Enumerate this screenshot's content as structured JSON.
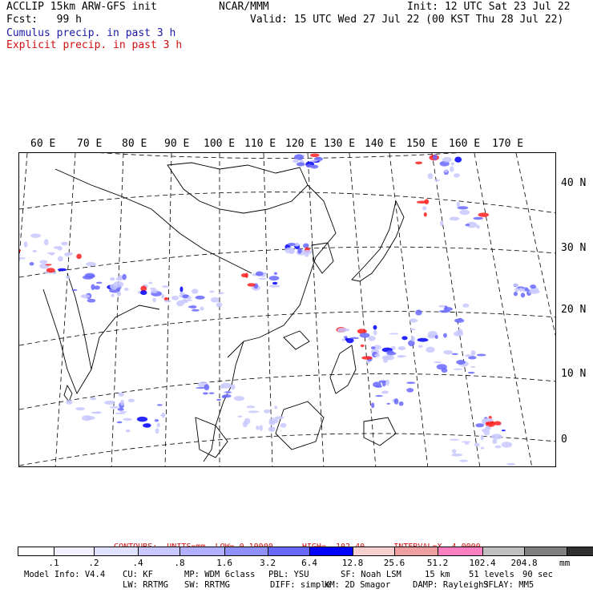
{
  "header": {
    "line1_left": "ACCLIP 15km ARW-GFS init",
    "line1_mid": "NCAR/MMM",
    "line1_right": "Init: 12 UTC Sat 23 Jul 22",
    "line2_left": "Fcst:   99 h",
    "line2_right": "Valid: 15 UTC Wed 27 Jul 22 (00 KST Thu 28 Jul 22)",
    "line3": "Cumulus precip. in past 3 h",
    "line4": "Explicit precip. in past 3 h"
  },
  "map": {
    "lon_labels": [
      "60 E",
      "70 E",
      "80 E",
      "90 E",
      "100 E",
      "110 E",
      "120 E",
      "130 E",
      "140 E",
      "150 E",
      "160 E",
      "170 E"
    ],
    "lat_labels": [
      "40 N",
      "30 N",
      "20 N",
      "10 N",
      "0"
    ]
  },
  "contours": {
    "label": "CONTOURS:",
    "units": "UNITS=mm",
    "low": "LOW= 0.10000",
    "high": "HIGH=  102.40",
    "interval": "INTERVAL=X  4.0000"
  },
  "colorbar": {
    "colors": [
      "#ffffff",
      "#f0f0ff",
      "#e0e0ff",
      "#c8c8ff",
      "#b0b0ff",
      "#9090ff",
      "#6868ff",
      "#0000ff",
      "#f8d0d0",
      "#f0a0a0",
      "#ff80c0",
      "#c0c0c0",
      "#808080",
      "#303030",
      "#d0a0f0"
    ],
    "ticks": [
      ".1",
      ".2",
      ".4",
      ".8",
      "1.6",
      "3.2",
      "6.4",
      "12.8",
      "25.6",
      "51.2",
      "102.4",
      "204.8"
    ],
    "units": "mm"
  },
  "footer": {
    "row1": [
      "Model Info: V4.4",
      "CU: KF",
      "MP: WDM 6class",
      "PBL: YSU",
      "SF: Noah LSM",
      "15 km",
      "51 levels",
      "90 sec"
    ],
    "row2": [
      "LW: RRTMG",
      "SW: RRTMG",
      "DIFF: simple",
      "KM: 2D Smagor",
      "DAMP: Rayleigh3",
      "SFLAY: MM5"
    ]
  }
}
